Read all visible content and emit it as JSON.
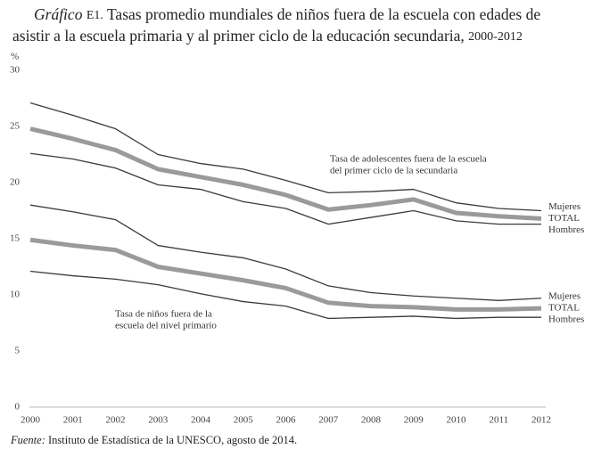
{
  "chart_data": {
    "type": "line",
    "title_label": "Gráfico",
    "title_number": "E1.",
    "title_lines": [
      "Tasas promedio mundiales de niños fuera de la escuela con edades de",
      "asistir a la escuela primaria y al primer ciclo de la educación secundaria,"
    ],
    "title_years": "2000-2012",
    "y_label": "%",
    "x": [
      2000,
      2001,
      2002,
      2003,
      2004,
      2005,
      2006,
      2007,
      2008,
      2009,
      2010,
      2011,
      2012
    ],
    "xlim": [
      2000,
      2012
    ],
    "xticks": [
      2000,
      2001,
      2002,
      2003,
      2004,
      2005,
      2006,
      2007,
      2008,
      2009,
      2010,
      2011,
      2012
    ],
    "ylim": [
      0,
      30
    ],
    "yticks": [
      0,
      5,
      10,
      15,
      20,
      25,
      30
    ],
    "series": [
      {
        "name": "Mujeres",
        "color": "#3a3a3a",
        "values": [
          27.1,
          26.0,
          24.8,
          22.5,
          21.7,
          21.2,
          20.2,
          19.1,
          19.2,
          19.4,
          18.2,
          17.7,
          17.5
        ]
      },
      {
        "name": "TOTAL",
        "color": "#9a9a9a",
        "values": [
          24.8,
          23.9,
          22.9,
          21.2,
          20.5,
          19.8,
          18.9,
          17.6,
          18.0,
          18.5,
          17.3,
          17.0,
          16.8
        ]
      },
      {
        "name": "Hombres",
        "color": "#3a3a3a",
        "values": [
          22.6,
          22.1,
          21.3,
          19.8,
          19.4,
          18.3,
          17.7,
          16.3,
          16.9,
          17.5,
          16.6,
          16.3,
          16.3
        ]
      },
      {
        "name": "Mujeres",
        "color": "#3a3a3a",
        "values": [
          18.0,
          17.4,
          16.7,
          14.4,
          13.8,
          13.3,
          12.3,
          10.8,
          10.2,
          9.9,
          9.7,
          9.5,
          9.7
        ]
      },
      {
        "name": "TOTAL",
        "color": "#9a9a9a",
        "values": [
          14.9,
          14.4,
          14.0,
          12.5,
          11.9,
          11.3,
          10.6,
          9.3,
          9.0,
          8.9,
          8.7,
          8.7,
          8.8
        ]
      },
      {
        "name": "Hombres",
        "color": "#3a3a3a",
        "values": [
          12.1,
          11.7,
          11.4,
          10.9,
          10.1,
          9.4,
          9.0,
          7.9,
          8.0,
          8.1,
          7.9,
          8.0,
          8.0
        ]
      }
    ],
    "annotations": [
      [
        "Tasa de adolescentes fuera de la escuela",
        "del primer ciclo de la secundaria"
      ],
      [
        "Tasa de niños fuera de la",
        "escuela del nivel primario"
      ]
    ],
    "source_label": "Fuente:",
    "source": "Instituto de Estadística de la UNESCO, agosto de 2014."
  }
}
